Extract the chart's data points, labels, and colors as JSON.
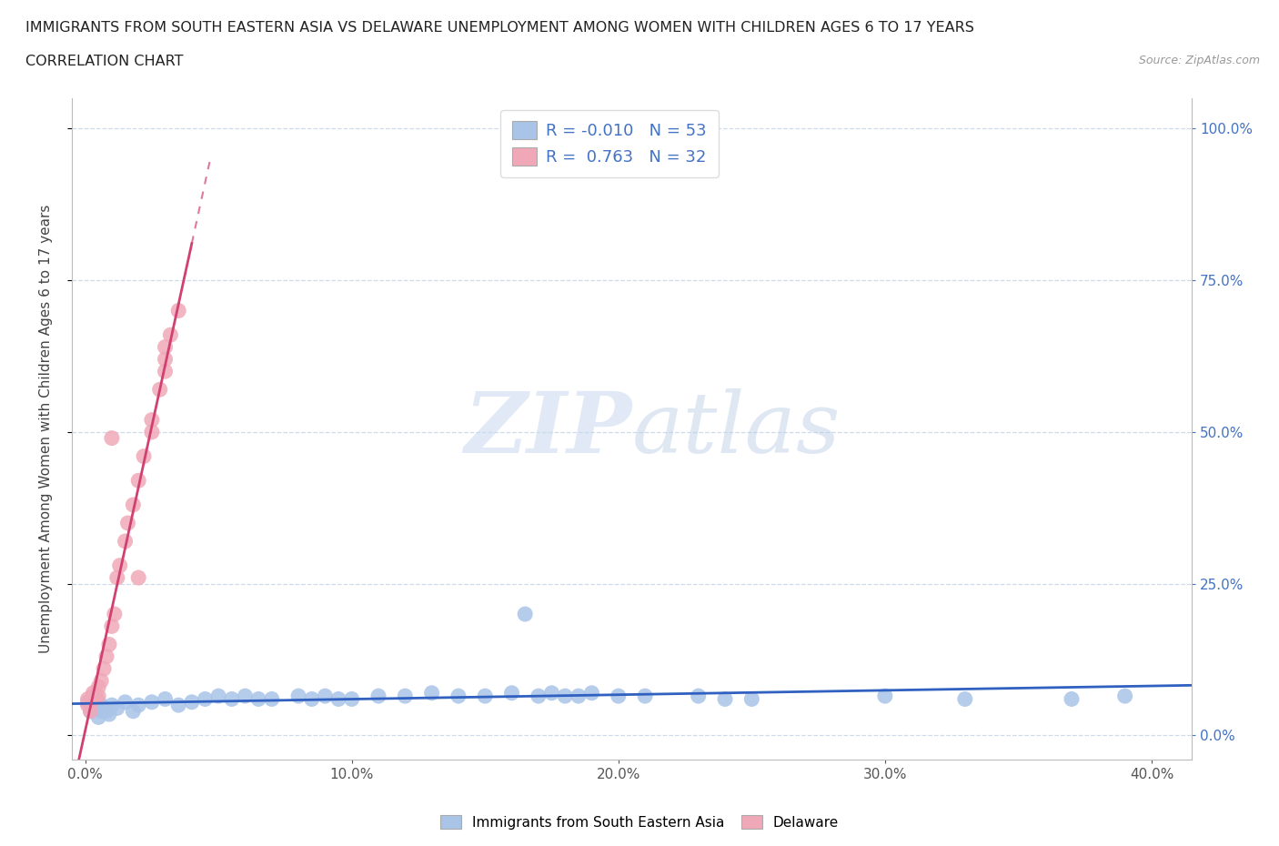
{
  "title": "IMMIGRANTS FROM SOUTH EASTERN ASIA VS DELAWARE UNEMPLOYMENT AMONG WOMEN WITH CHILDREN AGES 6 TO 17 YEARS",
  "subtitle": "CORRELATION CHART",
  "source": "Source: ZipAtlas.com",
  "ylabel": "Unemployment Among Women with Children Ages 6 to 17 years",
  "xlabel_ticks": [
    "0.0%",
    "10.0%",
    "20.0%",
    "30.0%",
    "40.0%"
  ],
  "xlabel_vals": [
    0.0,
    0.1,
    0.2,
    0.3,
    0.4
  ],
  "ylabel_right_ticks": [
    "100.0%",
    "75.0%",
    "50.0%",
    "25.0%",
    "0.0%"
  ],
  "ylabel_right_vals": [
    1.0,
    0.75,
    0.5,
    0.25,
    0.0
  ],
  "R_blue": -0.01,
  "N_blue": 53,
  "R_pink": 0.763,
  "N_pink": 32,
  "legend_label_blue": "Immigrants from South Eastern Asia",
  "legend_label_pink": "Delaware",
  "blue_color": "#aac4e8",
  "pink_color": "#f0a8b8",
  "blue_line_color": "#3060c0",
  "pink_line_color": "#d04070",
  "watermark_color": "#d0dff0",
  "grid_color": "#c8d8e8",
  "blue_scatter_x": [
    0.001,
    0.002,
    0.003,
    0.004,
    0.004,
    0.005,
    0.005,
    0.006,
    0.006,
    0.007,
    0.008,
    0.009,
    0.01,
    0.012,
    0.015,
    0.018,
    0.02,
    0.025,
    0.03,
    0.035,
    0.04,
    0.045,
    0.05,
    0.055,
    0.06,
    0.065,
    0.07,
    0.08,
    0.085,
    0.09,
    0.095,
    0.1,
    0.11,
    0.12,
    0.13,
    0.14,
    0.15,
    0.16,
    0.165,
    0.17,
    0.175,
    0.18,
    0.185,
    0.19,
    0.2,
    0.21,
    0.23,
    0.24,
    0.25,
    0.3,
    0.33,
    0.37,
    0.39
  ],
  "blue_scatter_y": [
    0.055,
    0.04,
    0.05,
    0.045,
    0.06,
    0.03,
    0.055,
    0.04,
    0.05,
    0.045,
    0.04,
    0.035,
    0.05,
    0.045,
    0.055,
    0.04,
    0.05,
    0.055,
    0.06,
    0.05,
    0.055,
    0.06,
    0.065,
    0.06,
    0.065,
    0.06,
    0.06,
    0.065,
    0.06,
    0.065,
    0.06,
    0.06,
    0.065,
    0.065,
    0.07,
    0.065,
    0.065,
    0.07,
    0.2,
    0.065,
    0.07,
    0.065,
    0.065,
    0.07,
    0.065,
    0.065,
    0.065,
    0.06,
    0.06,
    0.065,
    0.06,
    0.06,
    0.065
  ],
  "pink_scatter_x": [
    0.001,
    0.001,
    0.002,
    0.002,
    0.003,
    0.003,
    0.004,
    0.005,
    0.005,
    0.006,
    0.007,
    0.008,
    0.009,
    0.01,
    0.011,
    0.012,
    0.013,
    0.015,
    0.016,
    0.018,
    0.02,
    0.022,
    0.025,
    0.025,
    0.028,
    0.03,
    0.03,
    0.03,
    0.032,
    0.035,
    0.01,
    0.02
  ],
  "pink_scatter_y": [
    0.05,
    0.06,
    0.04,
    0.055,
    0.065,
    0.07,
    0.065,
    0.065,
    0.08,
    0.09,
    0.11,
    0.13,
    0.15,
    0.18,
    0.2,
    0.26,
    0.28,
    0.32,
    0.35,
    0.38,
    0.42,
    0.46,
    0.5,
    0.52,
    0.57,
    0.6,
    0.62,
    0.64,
    0.66,
    0.7,
    0.49,
    0.26
  ]
}
